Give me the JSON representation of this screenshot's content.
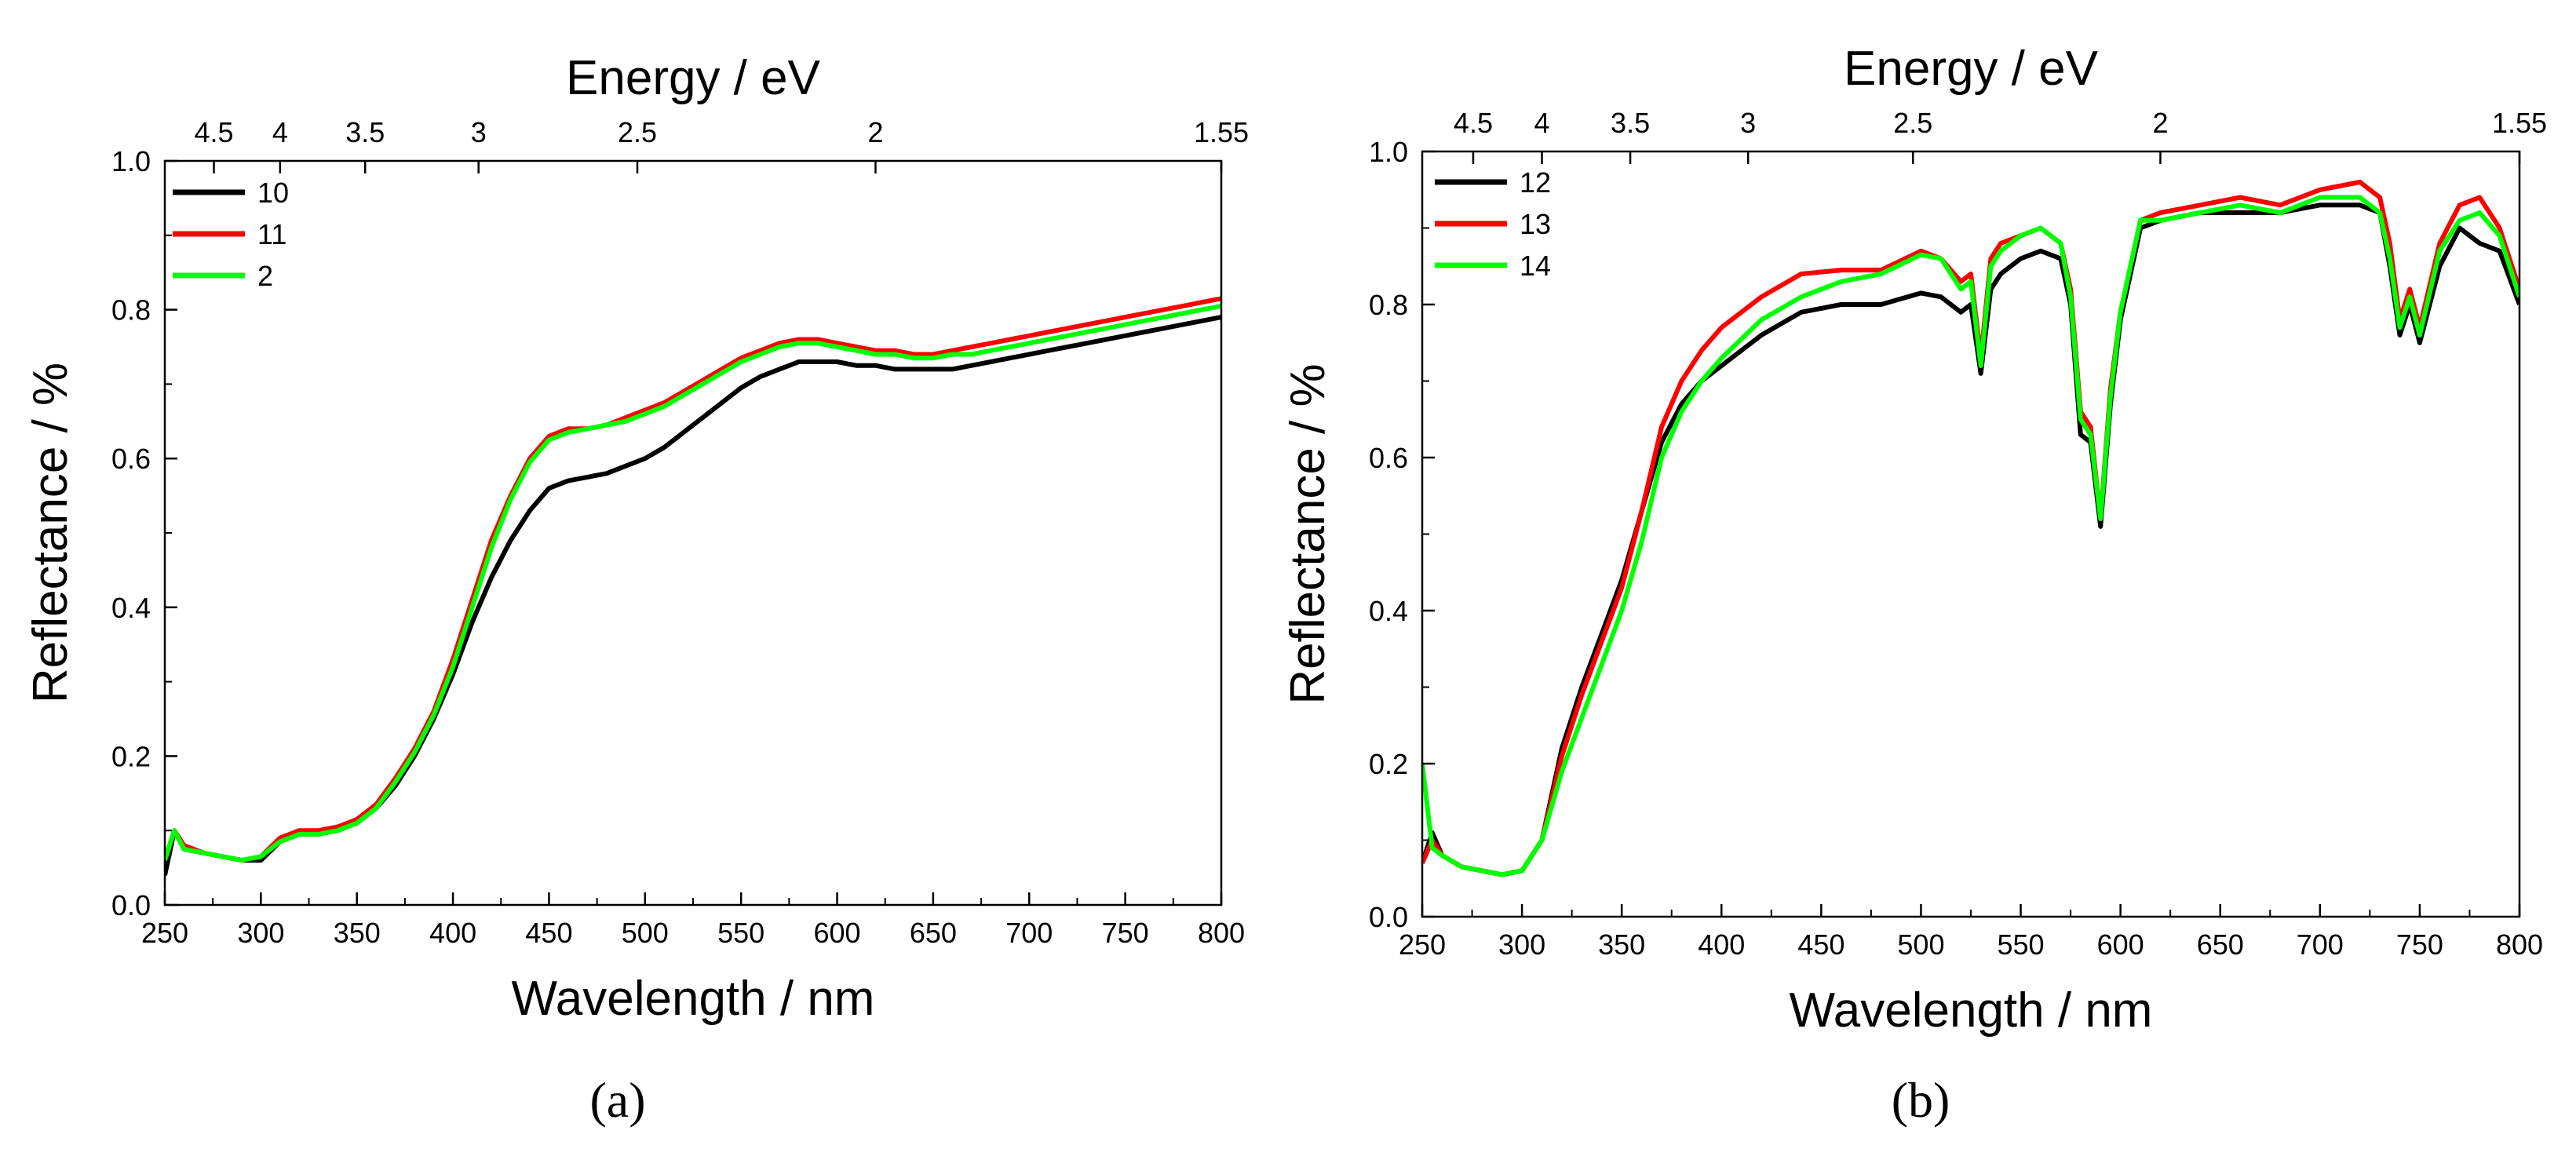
{
  "figure": {
    "panels": [
      "(a)",
      "(b)"
    ]
  },
  "chart_data": [
    {
      "id": "a",
      "type": "line",
      "panel_label": "(a)",
      "title": "",
      "xlabel": "Wavelength / nm",
      "ylabel": "Reflectance / %",
      "top_xlabel": "Energy / eV",
      "xlim": [
        250,
        800
      ],
      "ylim": [
        0.0,
        1.0
      ],
      "xticks": [
        250,
        300,
        350,
        400,
        450,
        500,
        550,
        600,
        650,
        700,
        750,
        800
      ],
      "yticks": [
        0.0,
        0.2,
        0.4,
        0.6,
        0.8,
        1.0
      ],
      "ytick_labels": [
        "0.0",
        "0.2",
        "0.4",
        "0.6",
        "0.8",
        "1.0"
      ],
      "top_ticks": [
        {
          "label": "4.5",
          "ev": 4.5
        },
        {
          "label": "4",
          "ev": 4.0
        },
        {
          "label": "3.5",
          "ev": 3.5
        },
        {
          "label": "3",
          "ev": 3.0
        },
        {
          "label": "2.5",
          "ev": 2.5
        },
        {
          "label": "2",
          "ev": 2.0
        },
        {
          "label": "1.55",
          "ev": 1.55
        }
      ],
      "legend_position": "top-left",
      "grid": false,
      "series": [
        {
          "name": "10",
          "color": "#000000",
          "x": [
            250,
            255,
            260,
            270,
            280,
            290,
            300,
            310,
            320,
            330,
            340,
            350,
            360,
            370,
            380,
            390,
            400,
            410,
            420,
            430,
            440,
            450,
            460,
            470,
            480,
            490,
            500,
            510,
            520,
            530,
            540,
            550,
            560,
            570,
            580,
            590,
            600,
            610,
            620,
            630,
            640,
            650,
            660,
            670,
            680,
            690,
            700,
            710,
            720,
            730,
            740,
            750,
            760,
            770,
            780,
            790,
            800
          ],
          "y": [
            0.04,
            0.1,
            0.075,
            0.07,
            0.065,
            0.06,
            0.06,
            0.085,
            0.095,
            0.095,
            0.1,
            0.11,
            0.13,
            0.16,
            0.2,
            0.25,
            0.31,
            0.38,
            0.44,
            0.49,
            0.53,
            0.56,
            0.57,
            0.575,
            0.58,
            0.59,
            0.6,
            0.615,
            0.635,
            0.655,
            0.675,
            0.695,
            0.71,
            0.72,
            0.73,
            0.73,
            0.73,
            0.725,
            0.725,
            0.72,
            0.72,
            0.72,
            0.72,
            0.725,
            0.73,
            0.735,
            0.74,
            0.745,
            0.75,
            0.755,
            0.76,
            0.765,
            0.77,
            0.775,
            0.78,
            0.785,
            0.79
          ]
        },
        {
          "name": "11",
          "color": "#ff0000",
          "x": [
            250,
            255,
            260,
            270,
            280,
            290,
            300,
            310,
            320,
            330,
            340,
            350,
            360,
            370,
            380,
            390,
            400,
            410,
            420,
            430,
            440,
            450,
            460,
            470,
            480,
            490,
            500,
            510,
            520,
            530,
            540,
            550,
            560,
            570,
            580,
            590,
            600,
            610,
            620,
            630,
            640,
            650,
            660,
            670,
            680,
            690,
            700,
            710,
            720,
            730,
            740,
            750,
            760,
            770,
            780,
            790,
            800
          ],
          "y": [
            0.06,
            0.1,
            0.08,
            0.07,
            0.065,
            0.06,
            0.065,
            0.09,
            0.1,
            0.1,
            0.105,
            0.115,
            0.135,
            0.17,
            0.21,
            0.26,
            0.33,
            0.41,
            0.49,
            0.55,
            0.6,
            0.63,
            0.64,
            0.64,
            0.645,
            0.655,
            0.665,
            0.675,
            0.69,
            0.705,
            0.72,
            0.735,
            0.745,
            0.755,
            0.76,
            0.76,
            0.755,
            0.75,
            0.745,
            0.745,
            0.74,
            0.74,
            0.745,
            0.75,
            0.755,
            0.76,
            0.765,
            0.77,
            0.775,
            0.78,
            0.785,
            0.79,
            0.795,
            0.8,
            0.805,
            0.81,
            0.815
          ]
        },
        {
          "name": "2",
          "color": "#00ff00",
          "x": [
            250,
            255,
            260,
            270,
            280,
            290,
            300,
            310,
            320,
            330,
            340,
            350,
            360,
            370,
            380,
            390,
            400,
            410,
            420,
            430,
            440,
            450,
            460,
            470,
            480,
            490,
            500,
            510,
            520,
            530,
            540,
            550,
            560,
            570,
            580,
            590,
            600,
            610,
            620,
            630,
            640,
            650,
            660,
            670,
            680,
            690,
            700,
            710,
            720,
            730,
            740,
            750,
            760,
            770,
            780,
            790,
            800
          ],
          "y": [
            0.06,
            0.1,
            0.075,
            0.07,
            0.065,
            0.06,
            0.065,
            0.085,
            0.095,
            0.095,
            0.1,
            0.11,
            0.13,
            0.165,
            0.205,
            0.255,
            0.32,
            0.4,
            0.48,
            0.545,
            0.595,
            0.625,
            0.635,
            0.64,
            0.645,
            0.65,
            0.66,
            0.67,
            0.685,
            0.7,
            0.715,
            0.73,
            0.74,
            0.75,
            0.755,
            0.755,
            0.75,
            0.745,
            0.74,
            0.74,
            0.735,
            0.735,
            0.74,
            0.74,
            0.745,
            0.75,
            0.755,
            0.76,
            0.765,
            0.77,
            0.775,
            0.78,
            0.785,
            0.79,
            0.795,
            0.8,
            0.805
          ]
        }
      ]
    },
    {
      "id": "b",
      "type": "line",
      "panel_label": "(b)",
      "title": "",
      "xlabel": "Wavelength / nm",
      "ylabel": "Reflectance / %",
      "top_xlabel": "Energy / eV",
      "xlim": [
        250,
        800
      ],
      "ylim": [
        0.0,
        1.0
      ],
      "xticks": [
        250,
        300,
        350,
        400,
        450,
        500,
        550,
        600,
        650,
        700,
        750,
        800
      ],
      "yticks": [
        0.0,
        0.2,
        0.4,
        0.6,
        0.8,
        1.0
      ],
      "ytick_labels": [
        "0.0",
        "0.2",
        "0.4",
        "0.6",
        "0.8",
        "1.0"
      ],
      "top_ticks": [
        {
          "label": "4.5",
          "ev": 4.5
        },
        {
          "label": "4",
          "ev": 4.0
        },
        {
          "label": "3.5",
          "ev": 3.5
        },
        {
          "label": "3",
          "ev": 3.0
        },
        {
          "label": "2.5",
          "ev": 2.5
        },
        {
          "label": "2",
          "ev": 2.0
        },
        {
          "label": "1.55",
          "ev": 1.55
        }
      ],
      "legend_position": "top-left",
      "grid": false,
      "series": [
        {
          "name": "12",
          "color": "#000000",
          "x": [
            250,
            255,
            260,
            270,
            280,
            290,
            300,
            310,
            320,
            330,
            340,
            350,
            360,
            370,
            380,
            390,
            400,
            420,
            440,
            460,
            480,
            500,
            510,
            520,
            525,
            530,
            535,
            540,
            550,
            560,
            570,
            575,
            580,
            585,
            590,
            595,
            600,
            610,
            620,
            640,
            660,
            680,
            700,
            720,
            730,
            735,
            740,
            745,
            750,
            760,
            770,
            780,
            790,
            800
          ],
          "y": [
            0.07,
            0.11,
            0.08,
            0.065,
            0.06,
            0.055,
            0.06,
            0.1,
            0.22,
            0.3,
            0.37,
            0.44,
            0.53,
            0.62,
            0.67,
            0.7,
            0.72,
            0.76,
            0.79,
            0.8,
            0.8,
            0.815,
            0.81,
            0.79,
            0.8,
            0.71,
            0.82,
            0.84,
            0.86,
            0.87,
            0.86,
            0.8,
            0.63,
            0.62,
            0.51,
            0.67,
            0.78,
            0.9,
            0.91,
            0.92,
            0.92,
            0.92,
            0.93,
            0.93,
            0.92,
            0.85,
            0.76,
            0.8,
            0.75,
            0.85,
            0.9,
            0.88,
            0.87,
            0.8
          ]
        },
        {
          "name": "13",
          "color": "#ff0000",
          "x": [
            250,
            255,
            260,
            270,
            280,
            290,
            300,
            310,
            320,
            330,
            340,
            350,
            360,
            370,
            380,
            390,
            400,
            420,
            440,
            460,
            480,
            500,
            510,
            520,
            525,
            530,
            535,
            540,
            550,
            560,
            570,
            575,
            580,
            585,
            590,
            595,
            600,
            610,
            620,
            640,
            660,
            680,
            700,
            720,
            730,
            735,
            740,
            745,
            750,
            760,
            770,
            780,
            790,
            800
          ],
          "y": [
            0.07,
            0.1,
            0.08,
            0.065,
            0.06,
            0.055,
            0.06,
            0.1,
            0.21,
            0.29,
            0.36,
            0.43,
            0.53,
            0.64,
            0.7,
            0.74,
            0.77,
            0.81,
            0.84,
            0.845,
            0.845,
            0.87,
            0.86,
            0.83,
            0.84,
            0.73,
            0.86,
            0.88,
            0.89,
            0.9,
            0.88,
            0.82,
            0.66,
            0.64,
            0.52,
            0.69,
            0.79,
            0.91,
            0.92,
            0.93,
            0.94,
            0.93,
            0.95,
            0.96,
            0.94,
            0.88,
            0.78,
            0.82,
            0.77,
            0.88,
            0.93,
            0.94,
            0.9,
            0.82
          ]
        },
        {
          "name": "14",
          "color": "#00ff00",
          "x": [
            250,
            255,
            260,
            270,
            280,
            290,
            300,
            310,
            320,
            330,
            340,
            350,
            360,
            370,
            380,
            390,
            400,
            420,
            440,
            460,
            480,
            500,
            510,
            520,
            525,
            530,
            535,
            540,
            550,
            560,
            570,
            575,
            580,
            585,
            590,
            595,
            600,
            610,
            620,
            640,
            660,
            680,
            700,
            720,
            730,
            735,
            740,
            745,
            750,
            760,
            770,
            780,
            790,
            800
          ],
          "y": [
            0.2,
            0.09,
            0.08,
            0.065,
            0.06,
            0.055,
            0.06,
            0.1,
            0.19,
            0.26,
            0.33,
            0.4,
            0.49,
            0.6,
            0.66,
            0.7,
            0.73,
            0.78,
            0.81,
            0.83,
            0.84,
            0.865,
            0.86,
            0.82,
            0.83,
            0.72,
            0.85,
            0.87,
            0.89,
            0.9,
            0.88,
            0.81,
            0.65,
            0.63,
            0.52,
            0.68,
            0.79,
            0.91,
            0.91,
            0.92,
            0.93,
            0.92,
            0.94,
            0.94,
            0.92,
            0.86,
            0.77,
            0.81,
            0.76,
            0.87,
            0.91,
            0.92,
            0.89,
            0.81
          ]
        }
      ]
    }
  ]
}
